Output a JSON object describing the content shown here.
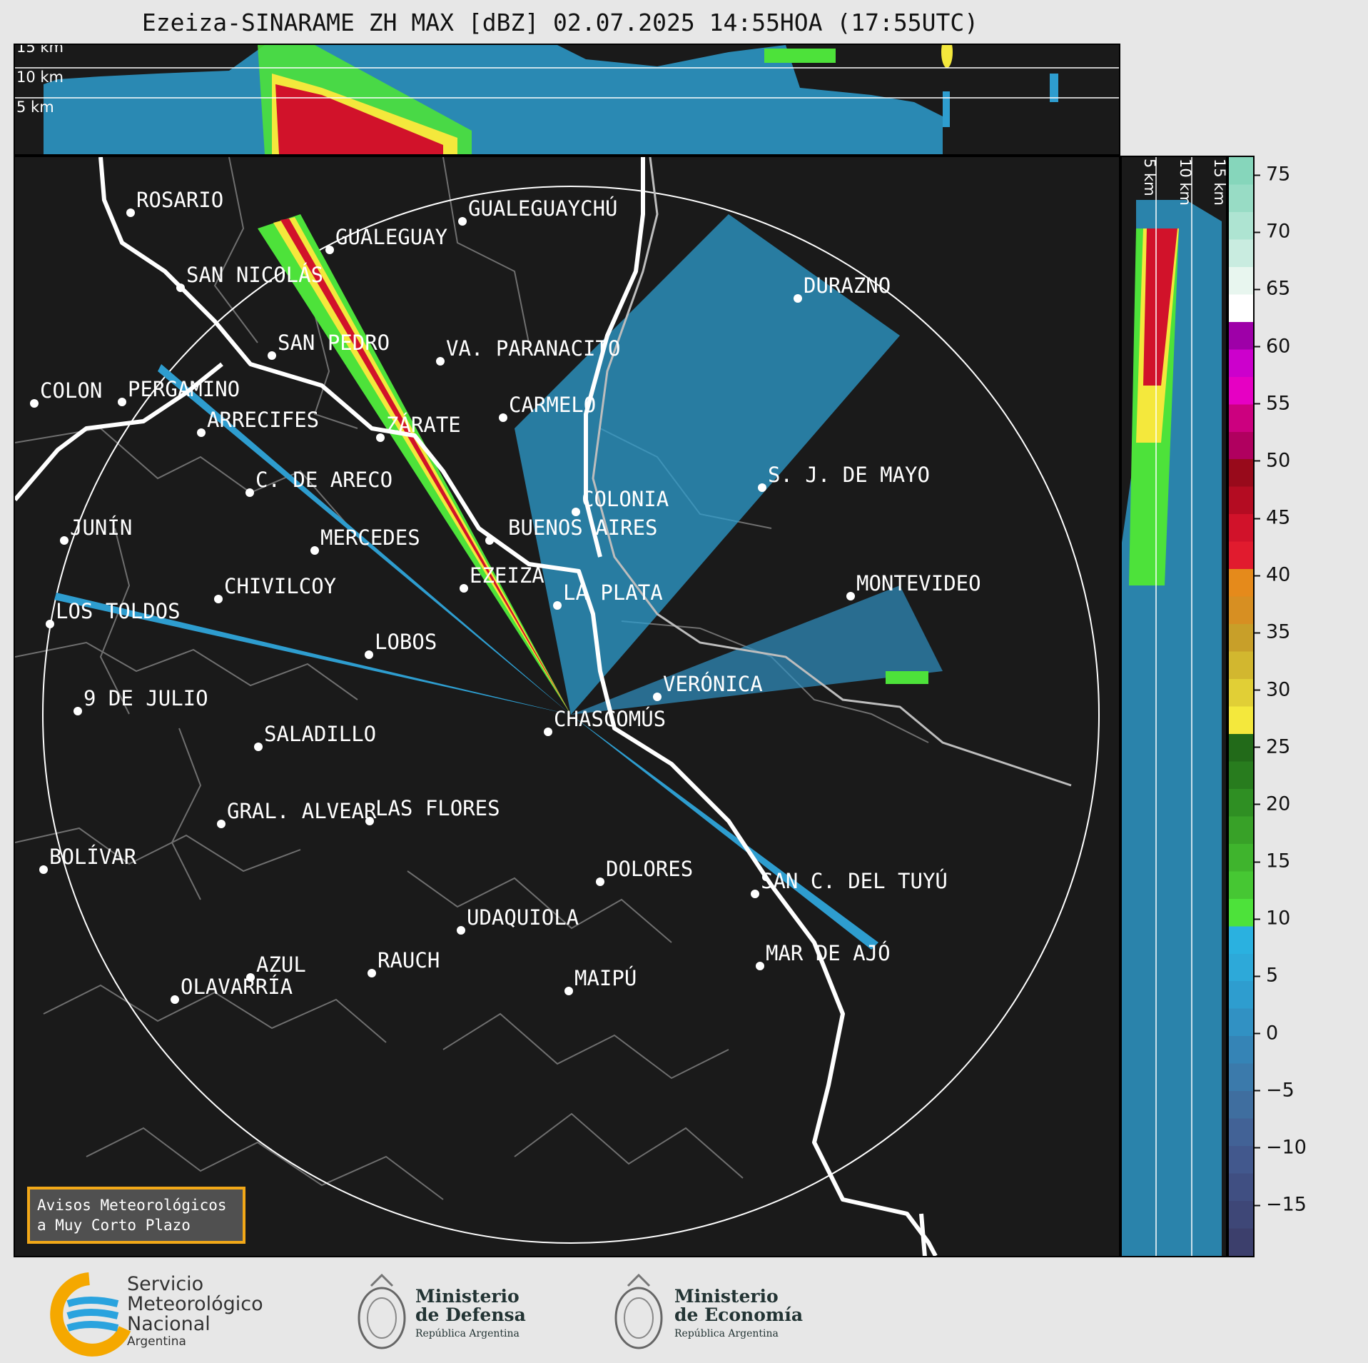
{
  "title": "Ezeiza-SINARAME ZH MAX [dBZ] 02.07.2025 14:55HOA (17:55UTC)",
  "top_panel": {
    "labels": [
      "15 km",
      "10 km",
      "5 km"
    ]
  },
  "side_panel": {
    "labels": [
      "5 km",
      "10 km",
      "15 km"
    ]
  },
  "cities": [
    {
      "name": "ROSARIO"
    },
    {
      "name": "GUALEGUAYCHÚ"
    },
    {
      "name": "GUALEGUAY"
    },
    {
      "name": "SAN NICOLÁS"
    },
    {
      "name": "DURAZNO"
    },
    {
      "name": "SAN PEDRO"
    },
    {
      "name": "VA. PARANACITO"
    },
    {
      "name": "COLON"
    },
    {
      "name": "PERGAMINO"
    },
    {
      "name": "CARMELO"
    },
    {
      "name": "ARRECIFES"
    },
    {
      "name": "ZÁRATE"
    },
    {
      "name": "S. J. DE MAYO"
    },
    {
      "name": "C. DE ARECO"
    },
    {
      "name": "COLONIA"
    },
    {
      "name": "JUNÍN"
    },
    {
      "name": "BUENOS AIRES"
    },
    {
      "name": "MERCEDES"
    },
    {
      "name": "EZEIZA"
    },
    {
      "name": "MONTEVIDEO"
    },
    {
      "name": "CHIVILCOY"
    },
    {
      "name": "LA PLATA"
    },
    {
      "name": "LOS TOLDOS"
    },
    {
      "name": "LOBOS"
    },
    {
      "name": "VERÓNICA"
    },
    {
      "name": "9 DE JULIO"
    },
    {
      "name": "CHASCOMÚS"
    },
    {
      "name": "SALADILLO"
    },
    {
      "name": "GRAL. ALVEAR"
    },
    {
      "name": "LAS FLORES"
    },
    {
      "name": "BOLÍVAR"
    },
    {
      "name": "DOLORES"
    },
    {
      "name": "SAN C. DEL TUYÚ"
    },
    {
      "name": "UDAQUIOLA"
    },
    {
      "name": "MAR DE AJÓ"
    },
    {
      "name": "AZUL"
    },
    {
      "name": "RAUCH"
    },
    {
      "name": "OLAVARRÍA"
    },
    {
      "name": "MAIPÚ"
    }
  ],
  "colorbar": {
    "ticks": [
      "75",
      "70",
      "65",
      "60",
      "55",
      "50",
      "45",
      "40",
      "35",
      "30",
      "25",
      "20",
      "15",
      "10",
      "5",
      "0",
      "−5",
      "−10",
      "−15"
    ],
    "colors": [
      "#3c3f6c",
      "#3e4777",
      "#404f82",
      "#42588d",
      "#426296",
      "#3f6e9f",
      "#3b7aab",
      "#3584b6",
      "#3191c3",
      "#2e9dcf",
      "#2da9d9",
      "#2ab1e0",
      "#4de23a",
      "#46c733",
      "#3fb42d",
      "#38a128",
      "#2f8f23",
      "#287c1e",
      "#226a19",
      "#f4e83c",
      "#e1cf36",
      "#d2b72f",
      "#c89f29",
      "#d78f22",
      "#e58a1b",
      "#e11b2e",
      "#d1122a",
      "#b40c22",
      "#980a1b",
      "#b0005f",
      "#cc007f",
      "#e600c3",
      "#cc00cc",
      "#9e00a8",
      "#ffffff",
      "#e8f6ef",
      "#c9ece0",
      "#aee4d2",
      "#98dcc5",
      "#86d6bb"
    ]
  },
  "avisos": "Avisos Meteorológicos\na Muy Corto Plazo",
  "footer": {
    "smn": [
      "Servicio",
      "Meteorológico",
      "Nacional",
      "Argentina"
    ],
    "defensa": [
      "Ministerio",
      "de Defensa",
      "República Argentina"
    ],
    "economia": [
      "Ministerio",
      "de Economía",
      "República Argentina"
    ]
  }
}
